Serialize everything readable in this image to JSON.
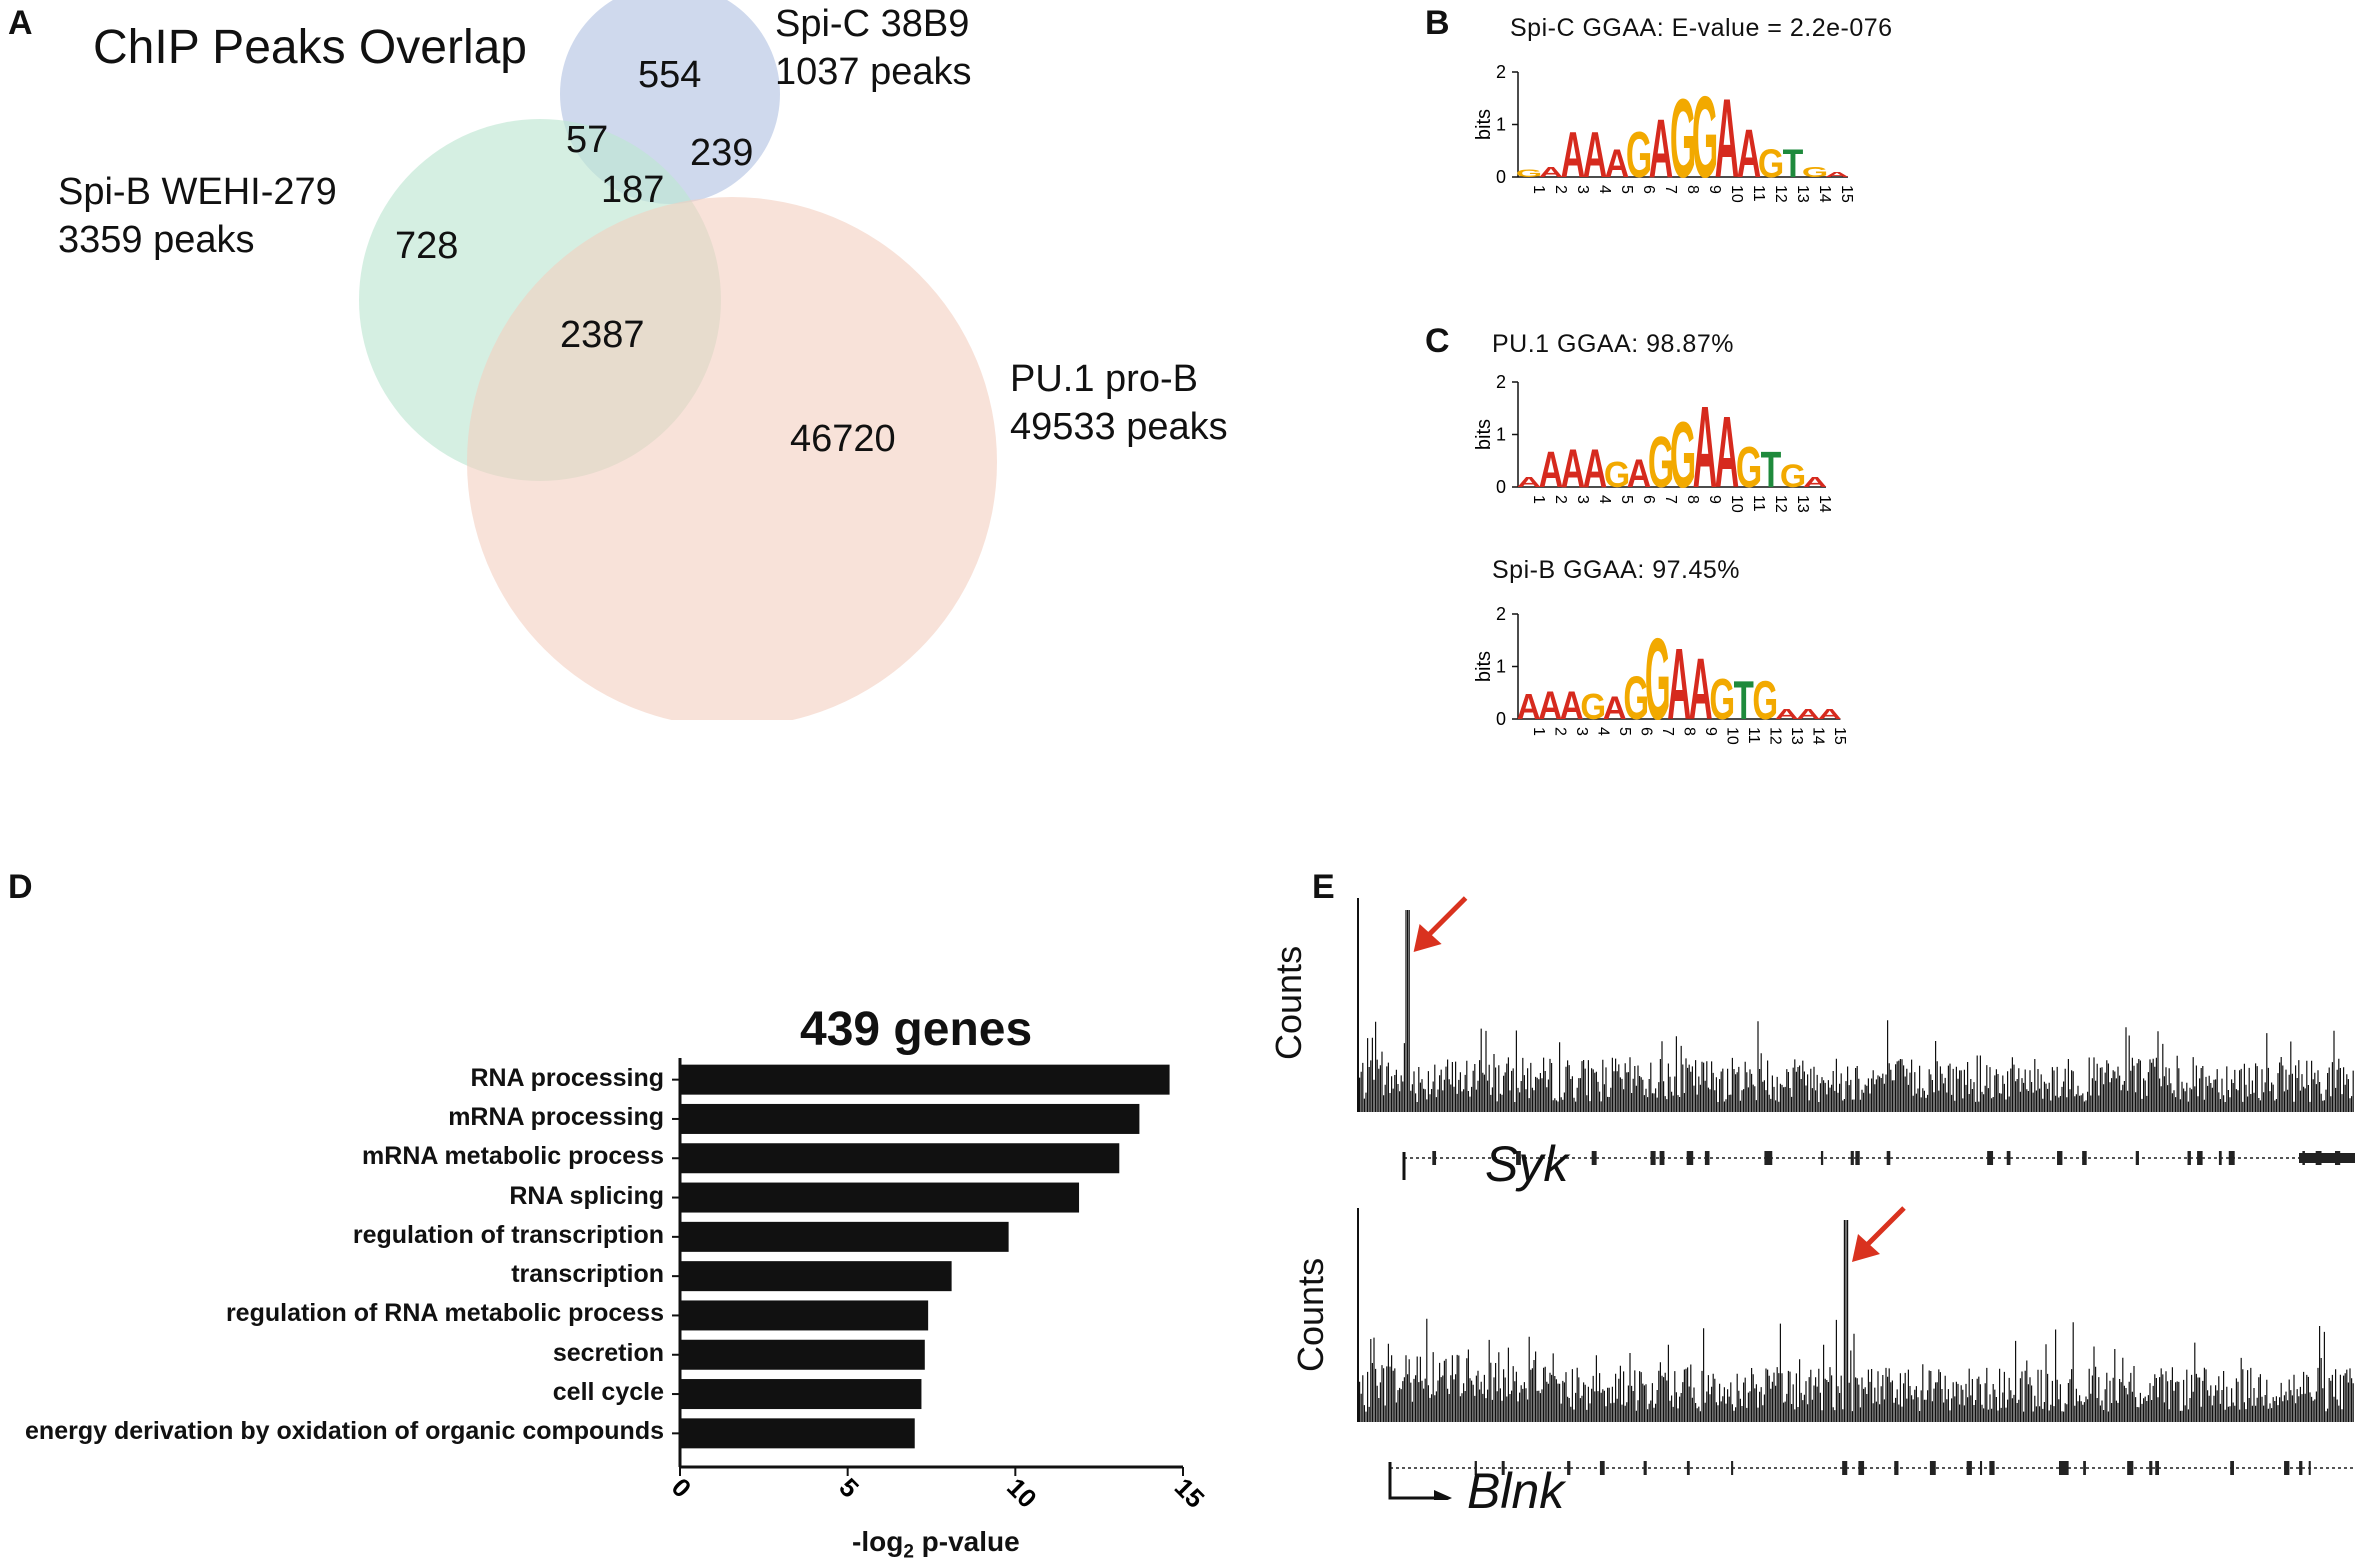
{
  "panels": {
    "a": "A",
    "b": "B",
    "c": "C",
    "d": "D",
    "e": "E"
  },
  "venn": {
    "title": "ChIP Peaks Overlap",
    "sets": [
      {
        "name": "Spi-C 38B9",
        "peaks": "1037 peaks",
        "color": "#b6c4e4"
      },
      {
        "name": "Spi-B WEHI-279",
        "peaks": "3359 peaks",
        "color": "#bfe6d2"
      },
      {
        "name": "PU.1 pro-B",
        "peaks": "49533 peaks",
        "color": "#f3cfbf"
      }
    ],
    "counts": {
      "spic_only": "554",
      "spic_spib": "57",
      "spic_pu1": "239",
      "all_three": "187",
      "spib_only": "728",
      "spib_pu1": "2387",
      "pu1_only": "46720"
    }
  },
  "motifs": {
    "b": {
      "title": "Spi-C GGAA: E-value = 2.2e-076",
      "ylabel": "bits",
      "yticks": [
        "2",
        "1",
        "0"
      ],
      "positions": [
        "1",
        "2",
        "3",
        "4",
        "5",
        "6",
        "7",
        "8",
        "9",
        "10",
        "11",
        "12",
        "13",
        "14",
        "15"
      ],
      "sequence": [
        "A",
        "A",
        "A",
        "A",
        "G",
        "A",
        "G",
        "G",
        "A",
        "A",
        "G",
        "T",
        "G"
      ]
    },
    "c1": {
      "title": "PU.1   GGAA: 98.87%",
      "ylabel": "bits",
      "yticks": [
        "2",
        "1",
        "0"
      ],
      "positions": [
        "1",
        "2",
        "3",
        "4",
        "5",
        "6",
        "7",
        "8",
        "9",
        "10",
        "11",
        "12",
        "13",
        "14"
      ],
      "sequence": [
        "A",
        "A",
        "A",
        "A",
        "G",
        "A",
        "G",
        "G",
        "A",
        "A",
        "G",
        "T",
        "G"
      ]
    },
    "c2": {
      "title": "Spi-B  GGAA: 97.45%",
      "ylabel": "bits",
      "yticks": [
        "2",
        "1",
        "0"
      ],
      "positions": [
        "1",
        "2",
        "3",
        "4",
        "5",
        "6",
        "7",
        "8",
        "9",
        "10",
        "11",
        "12",
        "13",
        "14",
        "15"
      ],
      "sequence": [
        "A",
        "A",
        "A",
        "G",
        "A",
        "G",
        "G",
        "A",
        "A",
        "G",
        "T",
        "G",
        "A",
        "A",
        "A"
      ]
    }
  },
  "chart_data": [
    {
      "type": "bar",
      "orientation": "horizontal",
      "title": "439 genes",
      "xlabel": "-log2 p-value",
      "xlabel_main": "-log",
      "xlabel_sub": "2",
      "xlabel_rest": " p-value",
      "xlim": [
        0,
        15
      ],
      "xticks": [
        0,
        5,
        10,
        15
      ],
      "categories": [
        "RNA processing",
        "mRNA processing",
        "mRNA metabolic process",
        "RNA splicing",
        "regulation of transcription",
        "transcription",
        "regulation of RNA metabolic process",
        "secretion",
        "cell cycle",
        "energy derivation by oxidation of organic compounds"
      ],
      "values": [
        14.6,
        13.7,
        13.1,
        11.9,
        9.8,
        8.1,
        7.4,
        7.3,
        7.2,
        7.0
      ],
      "bar_color": "#111111"
    }
  ],
  "tracks": [
    {
      "ylabel": "Counts",
      "gene": "Syk",
      "peak_fraction": 0.05,
      "arrow_color": "#d9321f"
    },
    {
      "ylabel": "Counts",
      "gene": "Blnk",
      "peak_fraction": 0.49,
      "arrow_color": "#d9321f"
    }
  ]
}
